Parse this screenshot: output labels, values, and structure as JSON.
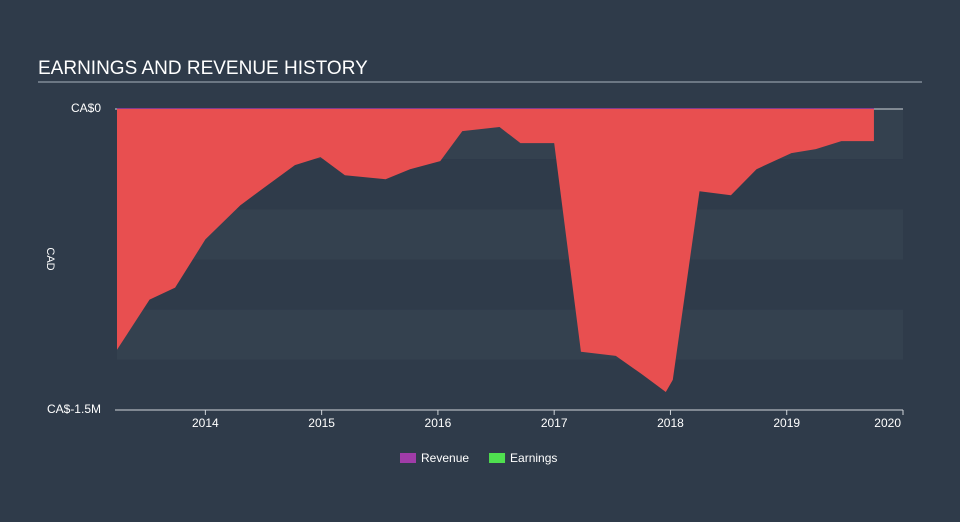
{
  "chart_data": {
    "type": "area",
    "title": "EARNINGS AND REVENUE HISTORY",
    "y_label": "CAD",
    "x": [
      2013.24,
      2013.52,
      2013.74,
      2014.0,
      2014.3,
      2014.51,
      2014.77,
      2014.99,
      2015.2,
      2015.55,
      2015.76,
      2016.02,
      2016.21,
      2016.53,
      2016.71,
      2017.0,
      2017.23,
      2017.53,
      2017.75,
      2017.96,
      2018.02,
      2018.25,
      2018.52,
      2018.74,
      2019.04,
      2019.25,
      2019.47,
      2019.75
    ],
    "series": [
      {
        "name": "Revenue",
        "color": "#a03ca8",
        "values": [
          0,
          0,
          0,
          0,
          0,
          0,
          0,
          0,
          0,
          0,
          0,
          0,
          0,
          0,
          0,
          0,
          0,
          0,
          0,
          0,
          0,
          0,
          0,
          0,
          0,
          0,
          0,
          0
        ]
      },
      {
        "name": "Earnings",
        "color": "#4fe04f",
        "negative_color": "#e84f50",
        "values": [
          -1200000,
          -950000,
          -890000,
          -650000,
          -480000,
          -390000,
          -280000,
          -240000,
          -330000,
          -350000,
          -300000,
          -260000,
          -110000,
          -90000,
          -170000,
          -170000,
          -1210000,
          -1230000,
          -1320000,
          -1410000,
          -1350000,
          -410000,
          -430000,
          -300000,
          -220000,
          -200000,
          -160000,
          -160000
        ]
      }
    ],
    "xlim": [
      2013.24,
      2020.0
    ],
    "xticks": [
      2014,
      2015,
      2016,
      2017,
      2018,
      2019,
      2020
    ],
    "ylim": [
      -1500000,
      0
    ],
    "yticks": [
      {
        "value": -1500000,
        "label": "CA$-1.5M"
      },
      {
        "value": 0,
        "label": "CA$0"
      }
    ]
  }
}
